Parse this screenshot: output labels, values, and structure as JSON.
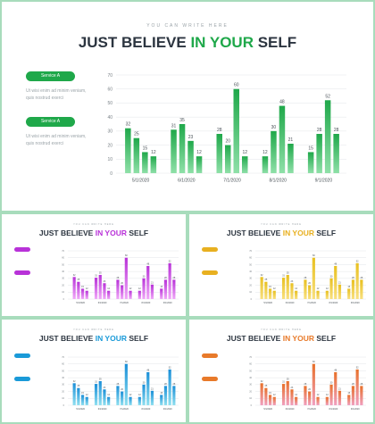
{
  "slide": {
    "kicker": "YOU CAN WRITE HERE",
    "title_pre": "JUST BELIEVE ",
    "title_hl": "IN YOUR",
    "title_post": " SELF",
    "services": [
      {
        "label": "Service A",
        "desc": [
          "Ut wisi enim ad minim veniam,",
          "quis nostrud exerci"
        ]
      },
      {
        "label": "Service A",
        "desc": [
          "Ut wisi enim ad minim veniam,",
          "quis nostrud exerci"
        ]
      }
    ]
  },
  "themes": {
    "main": {
      "accent": "#1fa84a",
      "dark": "#1fa84a",
      "light": "#8fe0a8"
    },
    "purple": {
      "accent": "#b832d8",
      "dark": "#b832d8",
      "light": "#f0a8f8"
    },
    "yellow": {
      "accent": "#e8b020",
      "dark": "#e8c020",
      "light": "#f8e080"
    },
    "blue": {
      "accent": "#1a9ad8",
      "dark": "#1a8fd8",
      "light": "#90e0f0"
    },
    "orange": {
      "accent": "#e87a2a",
      "dark": "#e8702a",
      "light": "#f0a0c0"
    }
  },
  "chart_data": {
    "type": "bar",
    "categories": [
      "5/1/2020",
      "6/1/2020",
      "7/1/2020",
      "8/1/2020",
      "9/1/2020"
    ],
    "series": [
      {
        "values": [
          32,
          31,
          28,
          12,
          15
        ]
      },
      {
        "values": [
          25,
          35,
          20,
          30,
          28
        ]
      },
      {
        "values": [
          15,
          23,
          60,
          48,
          52
        ]
      },
      {
        "values": [
          12,
          12,
          12,
          21,
          28
        ]
      }
    ],
    "ylim": [
      0,
      70
    ],
    "yticks": [
      "0",
      "10",
      "20",
      "30",
      "40",
      "50",
      "60",
      "70"
    ],
    "grid": true
  }
}
